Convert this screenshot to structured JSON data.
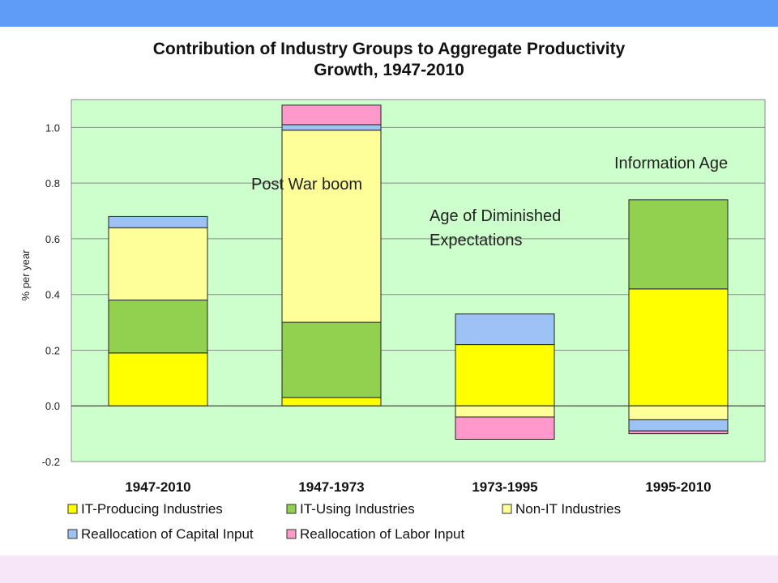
{
  "chart_data": {
    "type": "bar",
    "stacked": true,
    "title_line1": "Contribution of Industry Groups to Aggregate Productivity",
    "title_line2": "Growth, 1947-2010",
    "ylabel": "% per year",
    "xlabel": "",
    "ylim": [
      -0.2,
      1.1
    ],
    "yticks": [
      "-0.2",
      "0.0",
      "0.2",
      "0.4",
      "0.6",
      "0.8",
      "1.0"
    ],
    "ytick_values": [
      -0.2,
      0.0,
      0.2,
      0.4,
      0.6,
      0.8,
      1.0
    ],
    "categories": [
      "1947-2010",
      "1947-1973",
      "1973-1995",
      "1995-2010"
    ],
    "series": [
      {
        "name": "IT-Producing Industries",
        "color": "#ffff00",
        "values": [
          0.19,
          0.03,
          0.22,
          0.42
        ]
      },
      {
        "name": "IT-Using Industries",
        "color": "#92d050",
        "values": [
          0.19,
          0.27,
          0.0,
          0.32
        ]
      },
      {
        "name": "Non-IT Industries",
        "color": "#ffff99",
        "values": [
          0.26,
          0.69,
          -0.04,
          -0.05
        ]
      },
      {
        "name": "Reallocation of Capital Input",
        "color": "#9dc3f5",
        "values": [
          0.04,
          0.02,
          0.11,
          -0.04
        ]
      },
      {
        "name": "Reallocation of Labor Input",
        "color": "#ff99cc",
        "values": [
          0.0,
          0.07,
          -0.08,
          -0.01
        ]
      }
    ],
    "grid": true,
    "plot_background": "#ccffcc",
    "legend_position": "bottom",
    "annotations": [
      "Post War boom",
      "Age of Diminished",
      "Expectations",
      "Information Age"
    ]
  },
  "colors": {
    "top_band": "#5f9cf7",
    "bottom_band": "#f7e6f7"
  }
}
